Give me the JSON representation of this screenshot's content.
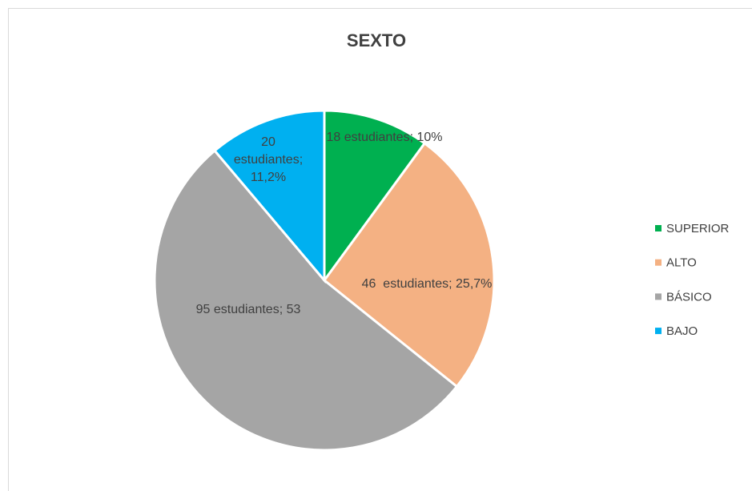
{
  "chart_data": {
    "type": "pie",
    "title": "SEXTO",
    "categories": [
      "SUPERIOR",
      "ALTO",
      "BÁSICO",
      "BAJO"
    ],
    "values": [
      18,
      46,
      95,
      20
    ],
    "value_labels": [
      "18 estudiantes; 10%",
      "46  estudiantes; 25,7%",
      "95 estudiantes; 53",
      "20 estudiantes; 11,2%"
    ],
    "colors": [
      "#00b050",
      "#f4b183",
      "#a5a5a5",
      "#00b0f0"
    ],
    "legend": "right"
  }
}
